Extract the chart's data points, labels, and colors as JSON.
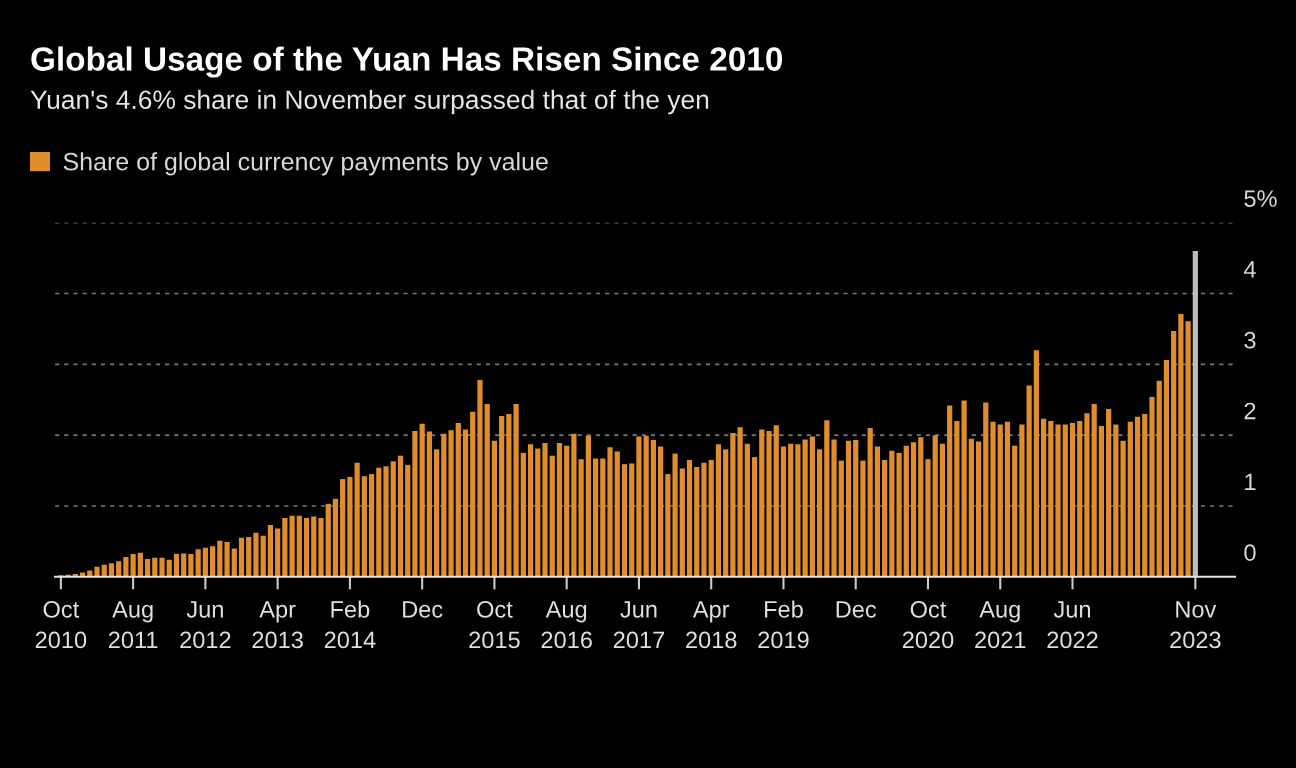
{
  "chart_data": {
    "type": "bar",
    "title": "Global Usage of the Yuan Has Risen Since 2010",
    "subtitle": "Yuan's 4.6% share in November surpassed that of the yen",
    "categories": [
      "Oct\n2010",
      null,
      null,
      null,
      null,
      null,
      null,
      null,
      null,
      null,
      "Aug\n2011",
      null,
      null,
      null,
      null,
      null,
      null,
      null,
      null,
      null,
      "Jun\n2012",
      null,
      null,
      null,
      null,
      null,
      null,
      null,
      null,
      null,
      "Apr\n2013",
      null,
      null,
      null,
      null,
      null,
      null,
      null,
      null,
      null,
      "Feb\n2014",
      null,
      null,
      null,
      null,
      null,
      null,
      null,
      null,
      null,
      "Dec",
      null,
      null,
      null,
      null,
      null,
      null,
      null,
      null,
      null,
      "Oct\n2015",
      null,
      null,
      null,
      null,
      null,
      null,
      null,
      null,
      null,
      "Aug\n2016",
      null,
      null,
      null,
      null,
      null,
      null,
      null,
      null,
      null,
      "Jun\n2017",
      null,
      null,
      null,
      null,
      null,
      null,
      null,
      null,
      null,
      "Apr\n2018",
      null,
      null,
      null,
      null,
      null,
      null,
      null,
      null,
      null,
      "Feb\n2019",
      null,
      null,
      null,
      null,
      null,
      null,
      null,
      null,
      null,
      "Dec",
      null,
      null,
      null,
      null,
      null,
      null,
      null,
      null,
      null,
      "Oct\n2020",
      null,
      null,
      null,
      null,
      null,
      null,
      null,
      null,
      null,
      "Aug\n2021",
      null,
      null,
      null,
      null,
      null,
      null,
      null,
      null,
      null,
      "Jun\n2022",
      null,
      null,
      null,
      null,
      null,
      null,
      null,
      null,
      null,
      null,
      null,
      null,
      null,
      null,
      null,
      null,
      "Nov\n2023"
    ],
    "series": [
      {
        "name": "Share of global currency payments by value",
        "color": "#e08d2c",
        "values": [
          0.02,
          0.03,
          0.04,
          0.06,
          0.09,
          0.14,
          0.17,
          0.19,
          0.22,
          0.28,
          0.32,
          0.34,
          0.25,
          0.27,
          0.27,
          0.24,
          0.32,
          0.33,
          0.32,
          0.39,
          0.41,
          0.43,
          0.51,
          0.49,
          0.4,
          0.55,
          0.56,
          0.62,
          0.58,
          0.73,
          0.68,
          0.83,
          0.86,
          0.86,
          0.83,
          0.85,
          0.83,
          1.03,
          1.1,
          1.38,
          1.41,
          1.61,
          1.42,
          1.45,
          1.54,
          1.56,
          1.63,
          1.71,
          1.58,
          2.06,
          2.16,
          2.05,
          1.8,
          2.02,
          2.07,
          2.17,
          2.08,
          2.33,
          2.78,
          2.44,
          1.92,
          2.27,
          2.3,
          2.44,
          1.75,
          1.87,
          1.81,
          1.89,
          1.71,
          1.89,
          1.85,
          2.02,
          1.66,
          1.99,
          1.67,
          1.67,
          1.83,
          1.77,
          1.59,
          1.6,
          1.98,
          1.99,
          1.93,
          1.84,
          1.45,
          1.74,
          1.53,
          1.65,
          1.55,
          1.61,
          1.65,
          1.87,
          1.8,
          2.03,
          2.11,
          1.88,
          1.69,
          2.08,
          2.06,
          2.14,
          1.84,
          1.88,
          1.87,
          1.94,
          1.98,
          1.8,
          2.21,
          1.94,
          1.64,
          1.92,
          1.93,
          1.64,
          2.1,
          1.84,
          1.65,
          1.78,
          1.75,
          1.85,
          1.9,
          1.97,
          1.66,
          2.0,
          1.88,
          2.42,
          2.2,
          2.49,
          1.95,
          1.91,
          2.46,
          2.19,
          2.15,
          2.19,
          1.85,
          2.15,
          2.7,
          3.2,
          2.23,
          2.2,
          2.15,
          2.15,
          2.17,
          2.2,
          2.31,
          2.44,
          2.13,
          2.37,
          2.15,
          1.92,
          2.19,
          2.26,
          2.3,
          2.54,
          2.77,
          3.06,
          3.47,
          3.71,
          3.61,
          4.6
        ],
        "colors": [
          "#e08d2c",
          "#e08d2c",
          "#e08d2c",
          "#e08d2c",
          "#e08d2c",
          "#e08d2c",
          "#e08d2c",
          "#e08d2c",
          "#e08d2c",
          "#e08d2c",
          "#e08d2c",
          "#e08d2c",
          "#e08d2c",
          "#e08d2c",
          "#e08d2c",
          "#e08d2c",
          "#e08d2c",
          "#e08d2c",
          "#e08d2c",
          "#e08d2c",
          "#e08d2c",
          "#e08d2c",
          "#e08d2c",
          "#e08d2c",
          "#e08d2c",
          "#e08d2c",
          "#e08d2c",
          "#e08d2c",
          "#e08d2c",
          "#e08d2c",
          "#e08d2c",
          "#e08d2c",
          "#e08d2c",
          "#e08d2c",
          "#e08d2c",
          "#e08d2c",
          "#e08d2c",
          "#e08d2c",
          "#e08d2c",
          "#e08d2c",
          "#e08d2c",
          "#e08d2c",
          "#e08d2c",
          "#e08d2c",
          "#e08d2c",
          "#e08d2c",
          "#e08d2c",
          "#e08d2c",
          "#e08d2c",
          "#e08d2c",
          "#e08d2c",
          "#e08d2c",
          "#e08d2c",
          "#e08d2c",
          "#e08d2c",
          "#e08d2c",
          "#e08d2c",
          "#e08d2c",
          "#e08d2c",
          "#e08d2c",
          "#e08d2c",
          "#e08d2c",
          "#e08d2c",
          "#e08d2c",
          "#e08d2c",
          "#e08d2c",
          "#e08d2c",
          "#e08d2c",
          "#e08d2c",
          "#e08d2c",
          "#e08d2c",
          "#e08d2c",
          "#e08d2c",
          "#e08d2c",
          "#e08d2c",
          "#e08d2c",
          "#e08d2c",
          "#e08d2c",
          "#e08d2c",
          "#e08d2c",
          "#e08d2c",
          "#e08d2c",
          "#e08d2c",
          "#e08d2c",
          "#e08d2c",
          "#e08d2c",
          "#e08d2c",
          "#e08d2c",
          "#e08d2c",
          "#e08d2c",
          "#e08d2c",
          "#e08d2c",
          "#e08d2c",
          "#e08d2c",
          "#e08d2c",
          "#e08d2c",
          "#e08d2c",
          "#e08d2c",
          "#e08d2c",
          "#e08d2c",
          "#e08d2c",
          "#e08d2c",
          "#e08d2c",
          "#e08d2c",
          "#e08d2c",
          "#e08d2c",
          "#e08d2c",
          "#e08d2c",
          "#e08d2c",
          "#e08d2c",
          "#e08d2c",
          "#e08d2c",
          "#e08d2c",
          "#e08d2c",
          "#e08d2c",
          "#e08d2c",
          "#e08d2c",
          "#e08d2c",
          "#e08d2c",
          "#e08d2c",
          "#e08d2c",
          "#e08d2c",
          "#e08d2c",
          "#e08d2c",
          "#e08d2c",
          "#e08d2c",
          "#e08d2c",
          "#e08d2c",
          "#e08d2c",
          "#e08d2c",
          "#e08d2c",
          "#e08d2c",
          "#e08d2c",
          "#e08d2c",
          "#e08d2c",
          "#e08d2c",
          "#e08d2c",
          "#e08d2c",
          "#e08d2c",
          "#e08d2c",
          "#e08d2c",
          "#e08d2c",
          "#e08d2c",
          "#e08d2c",
          "#e08d2c",
          "#e08d2c",
          "#e08d2c",
          "#e08d2c",
          "#e08d2c",
          "#e08d2c",
          "#e08d2c",
          "#e08d2c",
          "#e08d2c",
          "#e08d2c",
          "#e08d2c",
          "#e08d2c",
          "#e08d2c",
          "#bdbdbd"
        ]
      }
    ],
    "ylim": [
      0,
      5
    ],
    "yticks": [
      0,
      1,
      2,
      3,
      4,
      {
        "value": 5,
        "label": "5%"
      }
    ],
    "grid": "y",
    "legend": "top left"
  }
}
